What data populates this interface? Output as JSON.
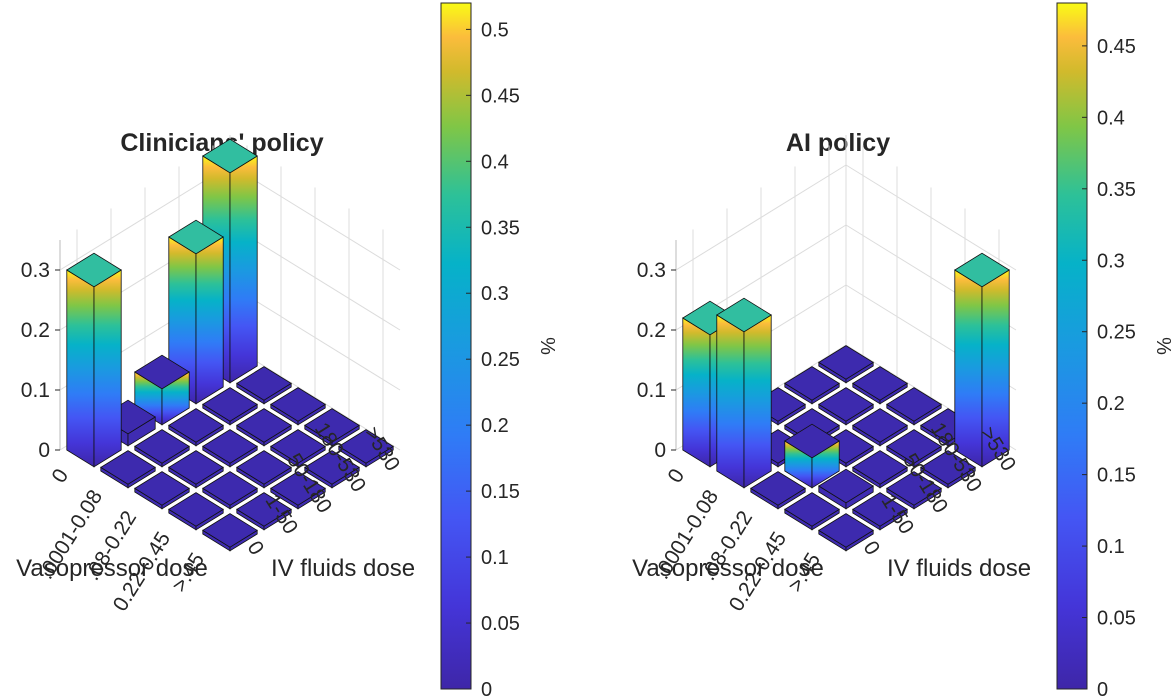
{
  "chart_data": [
    {
      "type": "bar3d",
      "title": "Clinicians' policy",
      "xlabel": "Vasopressor dose",
      "ylabel": "IV fluids dose",
      "zlim": [
        0,
        0.35
      ],
      "z_ticks": [
        "0",
        "0.1",
        "0.2",
        "0.3"
      ],
      "vasopressor_categories": [
        "0",
        ".0001-0.08",
        ".08-0.22",
        "0.22-0.45",
        ">.45"
      ],
      "iv_fluid_categories": [
        "0",
        "1-50",
        "50-180",
        "180-530",
        ">530"
      ],
      "values": [
        [
          0.3,
          0.02,
          0.06,
          0.25,
          0.35
        ],
        [
          0.0,
          0.0,
          0.0,
          0.0,
          0.0
        ],
        [
          0.0,
          0.0,
          0.0,
          0.0,
          0.0
        ],
        [
          0.0,
          0.0,
          0.0,
          0.0,
          0.0
        ],
        [
          0.0,
          0.0,
          0.0,
          0.0,
          0.0
        ]
      ],
      "colorbar": {
        "label": "%",
        "range": [
          0,
          0.52
        ],
        "ticks": [
          "0",
          "0.05",
          "0.1",
          "0.15",
          "0.2",
          "0.25",
          "0.3",
          "0.35",
          "0.4",
          "0.45",
          "0.5"
        ]
      },
      "grid": true
    },
    {
      "type": "bar3d",
      "title": "AI policy",
      "xlabel": "Vasopressor dose",
      "ylabel": "IV fluids dose",
      "zlim": [
        0,
        0.35
      ],
      "z_ticks": [
        "0",
        "0.1",
        "0.2",
        "0.3"
      ],
      "vasopressor_categories": [
        "0",
        ".0001-0.08",
        ".08-0.22",
        "0.22-0.45",
        ">.45"
      ],
      "iv_fluid_categories": [
        "0",
        "1-50",
        "50-180",
        "180-530",
        ">530"
      ],
      "values": [
        [
          0.22,
          0.0,
          0.0,
          0.0,
          0.0
        ],
        [
          0.26,
          0.0,
          0.0,
          0.0,
          0.0
        ],
        [
          0.0,
          0.05,
          0.0,
          0.0,
          0.0
        ],
        [
          0.0,
          0.01,
          0.0,
          0.0,
          0.0
        ],
        [
          0.0,
          0.0,
          0.0,
          0.0,
          0.3
        ]
      ],
      "colorbar": {
        "label": "%",
        "range": [
          0,
          0.48
        ],
        "ticks": [
          "0",
          "0.05",
          "0.1",
          "0.15",
          "0.2",
          "0.25",
          "0.3",
          "0.35",
          "0.4",
          "0.45"
        ]
      },
      "grid": true
    }
  ]
}
